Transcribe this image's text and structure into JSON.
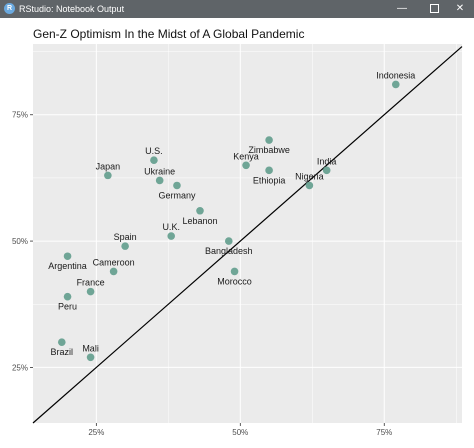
{
  "window": {
    "title": "RStudio: Notebook Output",
    "app_icon": "R",
    "minimize_icon": "minimize-icon",
    "maximize_icon": "maximize-icon",
    "close_icon": "close-icon"
  },
  "colors": {
    "panel": "#ebebeb",
    "grid_major": "#ffffff",
    "point": "#6fa596",
    "line": "#000000",
    "titlebar": "#5f6468"
  },
  "chart_data": {
    "type": "scatter",
    "title": "Gen-Z Optimism In the Midst of A Global Pandemic",
    "xlabel": "",
    "ylabel": "",
    "xlim": [
      0.14,
      0.885
    ],
    "ylim": [
      0.14,
      0.89
    ],
    "x_ticks": [
      0.25,
      0.5,
      0.75
    ],
    "x_tick_labels": [
      "25%",
      "50%",
      "75%"
    ],
    "y_ticks": [
      0.25,
      0.5,
      0.75
    ],
    "y_tick_labels": [
      "25%",
      "50%",
      "75%"
    ],
    "grid": true,
    "reference_line": "y = x",
    "points": [
      {
        "label": "Indonesia",
        "x": 0.77,
        "y": 0.81,
        "label_pos": "above"
      },
      {
        "label": "Zimbabwe",
        "x": 0.55,
        "y": 0.7,
        "label_pos": "below"
      },
      {
        "label": "Kenya",
        "x": 0.51,
        "y": 0.65,
        "label_pos": "above"
      },
      {
        "label": "Ethiopia",
        "x": 0.55,
        "y": 0.64,
        "label_pos": "below"
      },
      {
        "label": "India",
        "x": 0.65,
        "y": 0.64,
        "label_pos": "above"
      },
      {
        "label": "Nigeria",
        "x": 0.62,
        "y": 0.61,
        "label_pos": "above"
      },
      {
        "label": "U.S.",
        "x": 0.35,
        "y": 0.66,
        "label_pos": "above"
      },
      {
        "label": "Japan",
        "x": 0.27,
        "y": 0.63,
        "label_pos": "above"
      },
      {
        "label": "Ukraine",
        "x": 0.36,
        "y": 0.62,
        "label_pos": "above"
      },
      {
        "label": "Germany",
        "x": 0.39,
        "y": 0.61,
        "label_pos": "below"
      },
      {
        "label": "Lebanon",
        "x": 0.43,
        "y": 0.56,
        "label_pos": "below"
      },
      {
        "label": "U.K.",
        "x": 0.38,
        "y": 0.51,
        "label_pos": "above"
      },
      {
        "label": "Bangladesh",
        "x": 0.48,
        "y": 0.5,
        "label_pos": "below"
      },
      {
        "label": "Spain",
        "x": 0.3,
        "y": 0.49,
        "label_pos": "above"
      },
      {
        "label": "Argentina",
        "x": 0.2,
        "y": 0.47,
        "label_pos": "below"
      },
      {
        "label": "Cameroon",
        "x": 0.28,
        "y": 0.44,
        "label_pos": "above"
      },
      {
        "label": "Morocco",
        "x": 0.49,
        "y": 0.44,
        "label_pos": "below"
      },
      {
        "label": "France",
        "x": 0.24,
        "y": 0.4,
        "label_pos": "above"
      },
      {
        "label": "Peru",
        "x": 0.2,
        "y": 0.39,
        "label_pos": "below"
      },
      {
        "label": "Brazil",
        "x": 0.19,
        "y": 0.3,
        "label_pos": "below"
      },
      {
        "label": "Mali",
        "x": 0.24,
        "y": 0.27,
        "label_pos": "above"
      }
    ]
  }
}
